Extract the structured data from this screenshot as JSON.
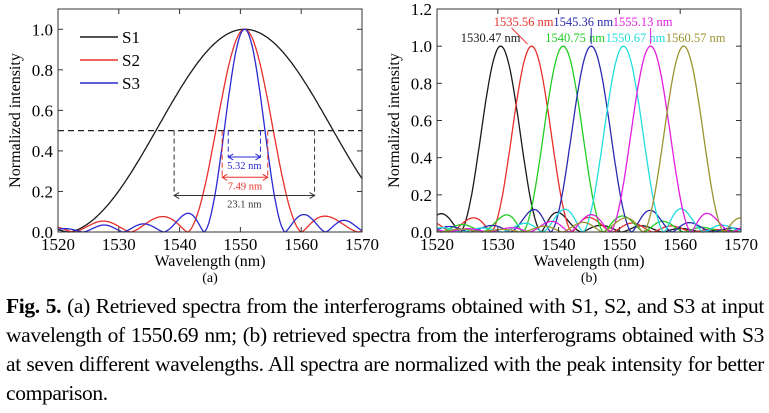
{
  "chart_data": [
    {
      "type": "line",
      "panel_label": "(a)",
      "xlabel": "Wavelength (nm)",
      "ylabel": "Normalized intensity",
      "xlim": [
        1520,
        1570
      ],
      "ylim": [
        0,
        1.1
      ],
      "xticks": [
        1520,
        1530,
        1540,
        1550,
        1560,
        1570
      ],
      "yticks": [
        "0.0",
        "0.2",
        "0.4",
        "0.6",
        "0.8",
        "1.0"
      ],
      "legend_position": "top-left",
      "half_max_line": 0.5,
      "series": [
        {
          "name": "S1",
          "color": "#1a1a1a",
          "peak_nm": 1550.69,
          "fwhm_nm": 23.1
        },
        {
          "name": "S2",
          "color": "#e8302a",
          "peak_nm": 1550.69,
          "fwhm_nm": 7.49
        },
        {
          "name": "S3",
          "color": "#2a2ad0",
          "peak_nm": 1550.69,
          "fwhm_nm": 5.32
        }
      ],
      "annotations": [
        {
          "text": "5.32 nm",
          "color": "#2a2ad0",
          "from": 1548.0,
          "to": 1553.3,
          "y": 0.37
        },
        {
          "text": "7.49 nm",
          "color": "#e8302a",
          "from": 1547.0,
          "to": 1554.5,
          "y": 0.27
        },
        {
          "text": "23.1 nm",
          "color": "#333333",
          "from": 1539.1,
          "to": 1562.2,
          "y": 0.18
        }
      ]
    },
    {
      "type": "line",
      "panel_label": "(b)",
      "xlabel": "Wavelength (nm)",
      "ylabel": "Normalized intensity",
      "xlim": [
        1520,
        1570
      ],
      "ylim": [
        0,
        1.2
      ],
      "xticks": [
        1520,
        1530,
        1540,
        1550,
        1560,
        1570
      ],
      "yticks": [
        "0.0",
        "0.2",
        "0.4",
        "0.6",
        "0.8",
        "1.0",
        "1.2"
      ],
      "series": [
        {
          "name": "1530.47 nm",
          "color": "#1a1a1a",
          "peak_nm": 1530.47,
          "fwhm_nm": 5.32,
          "label_row": 1
        },
        {
          "name": "1535.56 nm",
          "color": "#e8302a",
          "peak_nm": 1535.56,
          "fwhm_nm": 5.32,
          "label_row": 0
        },
        {
          "name": "1540.75 nm",
          "color": "#22cc22",
          "peak_nm": 1540.75,
          "fwhm_nm": 5.32,
          "label_row": 1
        },
        {
          "name": "1545.36 nm",
          "color": "#2a2ab0",
          "peak_nm": 1545.36,
          "fwhm_nm": 5.32,
          "label_row": 0
        },
        {
          "name": "1550.67 nm",
          "color": "#22dddd",
          "peak_nm": 1550.67,
          "fwhm_nm": 5.32,
          "label_row": 1
        },
        {
          "name": "1555.13 nm",
          "color": "#e020e0",
          "peak_nm": 1555.13,
          "fwhm_nm": 5.32,
          "label_row": 0
        },
        {
          "name": "1560.57 nm",
          "color": "#9a9430",
          "peak_nm": 1560.57,
          "fwhm_nm": 5.32,
          "label_row": 1
        }
      ]
    }
  ],
  "caption": {
    "fig_label": "Fig. 5.",
    "text": "(a) Retrieved spectra from the interferograms obtained with S1, S2, and S3 at input wavelength of 1550.69 nm; (b) retrieved spectra from the interferograms obtained with S3 at seven different wavelengths. All spectra are normalized with the peak intensity for better comparison."
  }
}
